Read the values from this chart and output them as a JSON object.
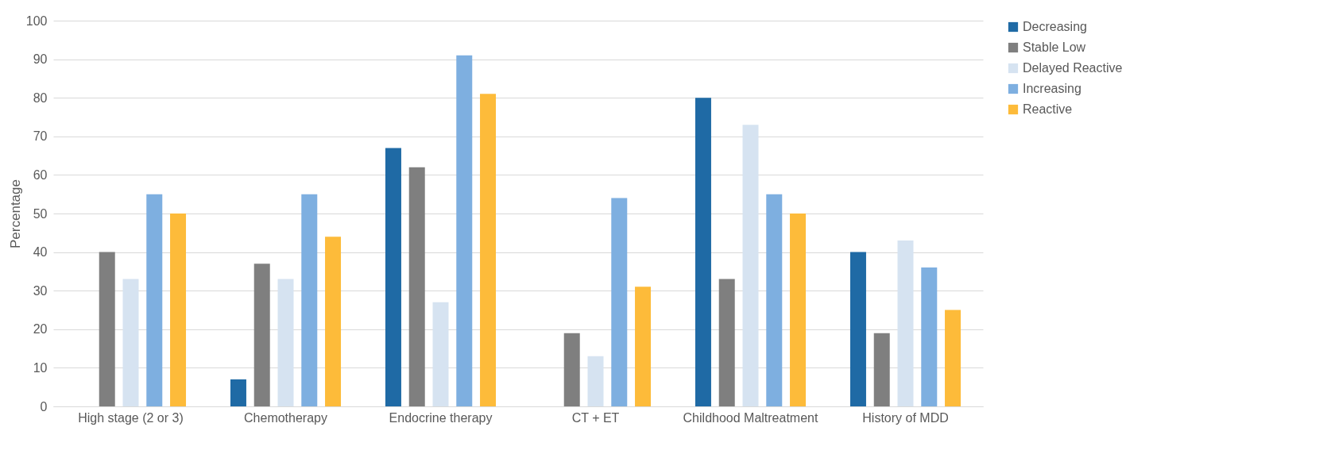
{
  "chart_data": {
    "type": "bar",
    "ylabel": "Percentage",
    "categories": [
      "High stage (2 or 3)",
      "Chemotherapy",
      "Endocrine therapy",
      "CT + ET",
      "Childhood Maltreatment",
      "History of MDD"
    ],
    "series": [
      {
        "name": "Decreasing",
        "color": "#1f6aa5",
        "values": [
          0,
          7,
          67,
          0,
          80,
          40
        ]
      },
      {
        "name": "Stable Low",
        "color": "#7f7f7f",
        "values": [
          40,
          37,
          62,
          19,
          33,
          19
        ]
      },
      {
        "name": "Delayed Reactive",
        "color": "#d6e3f1",
        "values": [
          33,
          33,
          27,
          13,
          73,
          43
        ]
      },
      {
        "name": "Increasing",
        "color": "#7eafe0",
        "values": [
          55,
          55,
          91,
          54,
          55,
          36
        ]
      },
      {
        "name": "Reactive",
        "color": "#fdbb3a",
        "values": [
          50,
          44,
          81,
          31,
          50,
          25
        ]
      }
    ],
    "ylim": [
      0,
      100
    ],
    "yticks": [
      0,
      10,
      20,
      30,
      40,
      50,
      60,
      70,
      80,
      90,
      100
    ],
    "grid": "y",
    "legend": "right"
  }
}
